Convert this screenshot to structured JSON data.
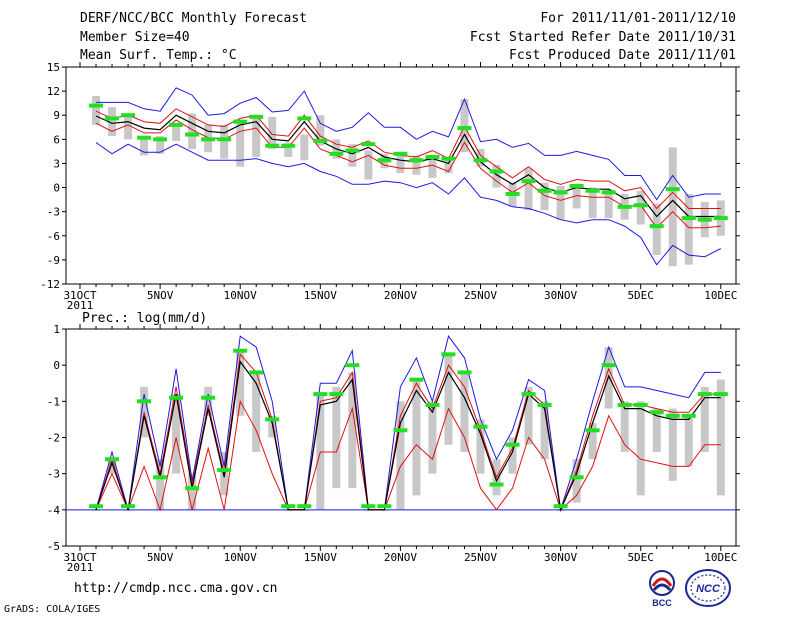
{
  "header": {
    "title": "DERF/NCC/BCC Monthly Forecast",
    "members": "Member Size=40",
    "panel1_label": "Mean Surf. Temp.: °C",
    "period": "For 2011/11/01-2011/12/10",
    "refer": "Fcst Started Refer Date 2011/10/31",
    "produced": "Fcst Produced Date 2011/11/01"
  },
  "footer": {
    "url": "http://cmdp.ncc.cma.gov.cn",
    "grads": "GrADS: COLA/IGES",
    "logo1_text": "BCC",
    "logo2_text": "NCC"
  },
  "colors": {
    "envelope": "#1a1ae6",
    "percentile": "#e01010",
    "mean": "#000000",
    "box": "#c8c8c8",
    "obs": "#20e020",
    "baseline": "#1a1ae6"
  },
  "chart_data": [
    {
      "type": "line",
      "title": "Mean Surf. Temp.: °C",
      "x_start_label": "31OCT",
      "year_label": "2011",
      "tick_labels": [
        "31OCT",
        "5NOV",
        "10NOV",
        "15NOV",
        "20NOV",
        "25NOV",
        "30NOV",
        "5DEC",
        "10DEC"
      ],
      "tick_days": [
        0,
        5,
        10,
        15,
        20,
        25,
        30,
        35,
        40
      ],
      "ylim": [
        -12,
        15
      ],
      "yticks": [
        -12,
        -9,
        -6,
        -3,
        0,
        3,
        6,
        9,
        12,
        15
      ],
      "x": [
        1,
        2,
        3,
        4,
        5,
        6,
        7,
        8,
        9,
        10,
        11,
        12,
        13,
        14,
        15,
        16,
        17,
        18,
        19,
        20,
        21,
        22,
        23,
        24,
        25,
        26,
        27,
        28,
        29,
        30,
        31,
        32,
        33,
        34,
        35,
        36,
        37,
        38,
        39,
        40
      ],
      "series": [
        {
          "name": "max",
          "values": [
            10.6,
            10.6,
            10.6,
            9.8,
            9.5,
            12.4,
            11.5,
            9.0,
            9.2,
            10.5,
            11.2,
            9.4,
            9.6,
            12.0,
            8.0,
            7.0,
            7.5,
            9.3,
            7.5,
            7.5,
            6.0,
            7.0,
            6.3,
            11.0,
            5.7,
            6.0,
            5.0,
            5.5,
            4.0,
            4.0,
            4.5,
            4.0,
            3.5,
            1.5,
            1.5,
            -1.5,
            1.5,
            -1.2,
            -0.8,
            -0.8
          ]
        },
        {
          "name": "p90",
          "values": [
            9.5,
            8.6,
            9.0,
            8.2,
            8.0,
            9.8,
            8.8,
            7.8,
            7.6,
            8.6,
            9.0,
            6.6,
            6.4,
            9.0,
            6.4,
            5.4,
            5.0,
            5.8,
            4.4,
            4.0,
            3.8,
            4.6,
            3.6,
            7.6,
            4.0,
            2.6,
            1.2,
            2.6,
            1.0,
            0.4,
            1.0,
            0.8,
            0.8,
            -0.4,
            0.0,
            -2.6,
            -0.6,
            -2.6,
            -2.6,
            -2.6
          ]
        },
        {
          "name": "mean",
          "values": [
            8.9,
            8.0,
            8.2,
            7.4,
            7.2,
            9.0,
            8.0,
            7.0,
            6.8,
            7.8,
            8.2,
            6.0,
            5.8,
            8.2,
            5.8,
            4.8,
            4.2,
            5.0,
            3.8,
            3.4,
            3.2,
            3.6,
            3.0,
            6.6,
            3.2,
            1.6,
            0.4,
            1.6,
            0.0,
            -0.6,
            0.0,
            -0.2,
            -0.2,
            -1.4,
            -1.0,
            -3.6,
            -1.6,
            -3.6,
            -3.6,
            -3.6
          ]
        },
        {
          "name": "p10",
          "values": [
            8.0,
            7.0,
            7.8,
            6.8,
            6.8,
            8.4,
            7.2,
            6.2,
            6.0,
            7.0,
            7.4,
            5.0,
            5.0,
            7.4,
            4.8,
            4.0,
            3.2,
            4.0,
            2.8,
            2.4,
            2.4,
            2.8,
            2.0,
            5.6,
            2.4,
            0.8,
            -0.6,
            0.6,
            -1.0,
            -1.6,
            -1.0,
            -1.2,
            -1.2,
            -2.4,
            -2.2,
            -5.0,
            -3.0,
            -5.0,
            -5.0,
            -4.8
          ]
        },
        {
          "name": "min",
          "values": [
            5.6,
            4.2,
            5.4,
            4.4,
            4.4,
            5.4,
            4.4,
            3.4,
            3.4,
            3.4,
            3.6,
            3.0,
            2.6,
            3.0,
            2.0,
            1.4,
            0.4,
            0.4,
            0.8,
            0.6,
            0.0,
            0.6,
            -0.8,
            1.2,
            -1.2,
            -1.6,
            -2.4,
            -2.6,
            -3.2,
            -4.0,
            -4.4,
            -4.0,
            -4.0,
            -4.8,
            -6.2,
            -9.6,
            -7.2,
            -8.4,
            -8.6,
            -7.6
          ]
        },
        {
          "name": "box_top",
          "values": [
            11.4,
            10.0,
            9.2,
            6.4,
            6.4,
            7.6,
            9.2,
            7.8,
            7.8,
            8.0,
            8.6,
            8.8,
            5.6,
            6.6,
            9.0,
            6.0,
            5.4,
            4.6,
            4.2,
            4.0,
            4.0,
            3.6,
            3.8,
            11.0,
            4.8,
            2.8,
            0.6,
            2.4,
            0.6,
            0.2,
            0.0,
            0.0,
            -0.2,
            -0.8,
            -0.4,
            -2.0,
            5.0,
            -0.8,
            -1.8,
            -1.6
          ]
        },
        {
          "name": "box_bottom",
          "values": [
            7.8,
            6.4,
            6.0,
            4.0,
            4.2,
            5.8,
            4.8,
            4.4,
            3.6,
            2.6,
            3.8,
            4.8,
            3.8,
            3.4,
            5.2,
            3.6,
            2.6,
            1.0,
            2.4,
            1.8,
            1.6,
            1.2,
            1.8,
            4.4,
            2.6,
            0.0,
            -2.4,
            -2.8,
            -2.8,
            -4.0,
            -2.6,
            -3.8,
            -3.8,
            -4.0,
            -4.6,
            -8.4,
            -9.8,
            -9.6,
            -6.2,
            -6.0
          ]
        },
        {
          "name": "observed",
          "values": [
            10.2,
            8.6,
            9.0,
            6.2,
            6.0,
            7.8,
            6.6,
            6.0,
            6.0,
            8.2,
            8.8,
            5.2,
            5.2,
            8.6,
            5.8,
            4.2,
            4.6,
            5.4,
            3.4,
            4.2,
            3.4,
            3.8,
            3.6,
            7.4,
            3.4,
            2.0,
            -0.8,
            0.8,
            -0.4,
            -0.6,
            0.2,
            -0.4,
            -0.6,
            -2.4,
            -2.2,
            -4.8,
            -0.2,
            -3.8,
            -4.0,
            -3.8
          ]
        }
      ]
    },
    {
      "type": "line",
      "title": "Prec.: log(mm/d)",
      "x_start_label": "31OCT",
      "year_label": "2011",
      "tick_labels": [
        "31OCT",
        "5NOV",
        "10NOV",
        "15NOV",
        "20NOV",
        "25NOV",
        "30NOV",
        "5DEC",
        "10DEC"
      ],
      "tick_days": [
        0,
        5,
        10,
        15,
        20,
        25,
        30,
        35,
        40
      ],
      "ylim": [
        -5,
        1
      ],
      "yticks": [
        -5,
        -4,
        -3,
        -2,
        -1,
        0,
        1
      ],
      "baseline": -4,
      "x": [
        1,
        2,
        3,
        4,
        5,
        6,
        7,
        8,
        9,
        10,
        11,
        12,
        13,
        14,
        15,
        16,
        17,
        18,
        19,
        20,
        21,
        22,
        23,
        24,
        25,
        26,
        27,
        28,
        29,
        30,
        31,
        32,
        33,
        34,
        35,
        36,
        37,
        38,
        39,
        40
      ],
      "series": [
        {
          "name": "max",
          "values": [
            -4.0,
            -2.4,
            -4.0,
            -0.8,
            -2.8,
            -0.1,
            -3.2,
            -0.8,
            -2.8,
            0.8,
            0.5,
            -1.0,
            -4.0,
            -4.0,
            -0.5,
            -0.5,
            0.4,
            -4.0,
            -4.0,
            -0.6,
            0.2,
            -1.0,
            0.8,
            0.2,
            -1.5,
            -2.6,
            -1.8,
            -0.4,
            -0.7,
            -4.0,
            -2.6,
            -1.0,
            0.5,
            -0.6,
            -0.6,
            -0.7,
            -0.8,
            -0.9,
            -0.2,
            -0.2
          ]
        },
        {
          "name": "mean",
          "values": [
            -4.0,
            -2.7,
            -4.0,
            -1.4,
            -3.1,
            -0.8,
            -3.4,
            -1.2,
            -3.1,
            0.1,
            -0.5,
            -1.6,
            -4.0,
            -4.0,
            -1.1,
            -1.0,
            -0.4,
            -4.0,
            -4.0,
            -1.6,
            -0.7,
            -1.3,
            -0.2,
            -0.9,
            -1.9,
            -3.2,
            -2.4,
            -0.8,
            -1.2,
            -4.0,
            -3.0,
            -1.6,
            -0.3,
            -1.2,
            -1.2,
            -1.4,
            -1.5,
            -1.5,
            -0.9,
            -0.9
          ]
        },
        {
          "name": "p90",
          "values": [
            -4.0,
            -2.6,
            -4.0,
            -1.3,
            -3.0,
            -0.6,
            -3.3,
            -1.1,
            -3.0,
            0.3,
            -0.2,
            -1.5,
            -4.0,
            -4.0,
            -1.0,
            -0.9,
            -0.2,
            -4.0,
            -4.0,
            -1.4,
            -0.5,
            -1.2,
            0.0,
            -0.6,
            -1.8,
            -3.1,
            -2.3,
            -0.7,
            -1.1,
            -4.0,
            -2.9,
            -1.4,
            -0.1,
            -1.1,
            -1.1,
            -1.2,
            -1.3,
            -1.3,
            -0.8,
            -0.8
          ]
        },
        {
          "name": "p10",
          "values": [
            -4.0,
            -3.0,
            -4.0,
            -2.8,
            -4.0,
            -2.0,
            -4.0,
            -2.3,
            -4.0,
            -1.0,
            -1.8,
            -3.0,
            -4.0,
            -4.0,
            -2.4,
            -2.4,
            -1.2,
            -4.0,
            -4.0,
            -2.8,
            -2.2,
            -2.6,
            -1.2,
            -2.0,
            -3.4,
            -4.0,
            -3.4,
            -2.0,
            -2.6,
            -4.0,
            -3.6,
            -2.8,
            -1.4,
            -2.2,
            -2.6,
            -2.7,
            -2.8,
            -2.8,
            -2.2,
            -2.2
          ]
        },
        {
          "name": "box_top",
          "values": [
            -4.0,
            -2.6,
            -4.0,
            -0.6,
            -2.6,
            -0.8,
            -3.0,
            -0.6,
            -2.4,
            0.4,
            -0.2,
            -1.4,
            -4.0,
            -4.0,
            -0.8,
            -0.6,
            -0.2,
            -4.0,
            -4.0,
            -1.0,
            -0.4,
            -1.0,
            0.3,
            -0.2,
            -1.5,
            -2.6,
            -2.0,
            -0.6,
            -1.0,
            -4.0,
            -2.6,
            -1.6,
            0.5,
            -1.0,
            -1.0,
            -1.2,
            -1.2,
            -1.4,
            -0.6,
            -0.4
          ]
        },
        {
          "name": "box_bottom",
          "values": [
            -4.0,
            -3.0,
            -4.0,
            -2.0,
            -4.0,
            -3.0,
            -4.0,
            -1.4,
            -3.6,
            -1.4,
            -2.4,
            -2.0,
            -4.0,
            -4.0,
            -4.0,
            -3.4,
            -3.4,
            -4.0,
            -4.0,
            -4.0,
            -3.6,
            -3.0,
            -2.2,
            -2.4,
            -3.0,
            -3.6,
            -3.0,
            -2.2,
            -2.6,
            -4.0,
            -3.8,
            -2.6,
            -1.2,
            -2.4,
            -3.6,
            -2.4,
            -3.2,
            -2.8,
            -2.4,
            -3.6
          ]
        },
        {
          "name": "observed",
          "values": [
            -3.9,
            -2.6,
            -3.9,
            -1.0,
            -3.1,
            -0.9,
            -3.4,
            -0.9,
            -2.9,
            0.4,
            -0.2,
            -1.5,
            -3.9,
            -3.9,
            -0.8,
            -0.8,
            0.0,
            -3.9,
            -3.9,
            -1.8,
            -0.4,
            -1.1,
            0.3,
            -0.2,
            -1.7,
            -3.3,
            -2.2,
            -0.8,
            -1.1,
            -3.9,
            -3.1,
            -1.8,
            0.0,
            -1.1,
            -1.1,
            -1.3,
            -1.4,
            -1.4,
            -0.8,
            -0.8
          ]
        }
      ]
    }
  ]
}
